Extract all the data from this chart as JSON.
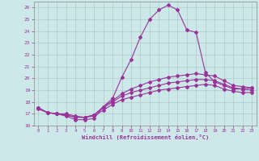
{
  "xlabel": "Windchill (Refroidissement éolien,°C)",
  "background_color": "#cce8e8",
  "grid_color": "#b0c8c8",
  "line_color": "#993399",
  "xlim": [
    -0.5,
    23.5
  ],
  "ylim": [
    16,
    26.5
  ],
  "yticks": [
    16,
    17,
    18,
    19,
    20,
    21,
    22,
    23,
    24,
    25,
    26
  ],
  "xticks": [
    0,
    1,
    2,
    3,
    4,
    5,
    6,
    7,
    8,
    9,
    10,
    11,
    12,
    13,
    14,
    15,
    16,
    17,
    18,
    19,
    20,
    21,
    22,
    23
  ],
  "line1_x": [
    0,
    1,
    2,
    3,
    4,
    5,
    6,
    7,
    8,
    9,
    10,
    11,
    12,
    13,
    14,
    15,
    16,
    17,
    18,
    19,
    20,
    21,
    22,
    23
  ],
  "line1_y": [
    17.4,
    17.1,
    17.0,
    16.8,
    16.5,
    16.5,
    16.6,
    17.6,
    18.3,
    20.1,
    21.6,
    23.5,
    25.0,
    25.8,
    26.2,
    25.8,
    24.1,
    23.9,
    20.5,
    19.7,
    19.4,
    19.1,
    19.1,
    19.2
  ],
  "line2_x": [
    0,
    1,
    2,
    3,
    4,
    5,
    6,
    7,
    8,
    9,
    10,
    11,
    12,
    13,
    14,
    15,
    16,
    17,
    18,
    19,
    20,
    21,
    22,
    23
  ],
  "line2_y": [
    17.5,
    17.1,
    17.0,
    17.0,
    16.8,
    16.7,
    16.9,
    17.6,
    18.1,
    18.7,
    19.1,
    19.4,
    19.7,
    19.9,
    20.1,
    20.2,
    20.3,
    20.4,
    20.3,
    20.2,
    19.8,
    19.4,
    19.3,
    19.2
  ],
  "line3_x": [
    0,
    1,
    2,
    3,
    4,
    5,
    6,
    7,
    8,
    9,
    10,
    11,
    12,
    13,
    14,
    15,
    16,
    17,
    18,
    19,
    20,
    21,
    22,
    23
  ],
  "line3_y": [
    17.5,
    17.1,
    17.0,
    16.9,
    16.7,
    16.7,
    16.9,
    17.5,
    18.0,
    18.5,
    18.8,
    19.0,
    19.2,
    19.4,
    19.6,
    19.7,
    19.8,
    19.9,
    19.9,
    19.8,
    19.5,
    19.2,
    19.1,
    19.0
  ],
  "line4_x": [
    0,
    1,
    2,
    3,
    4,
    5,
    6,
    7,
    8,
    9,
    10,
    11,
    12,
    13,
    14,
    15,
    16,
    17,
    18,
    19,
    20,
    21,
    22,
    23
  ],
  "line4_y": [
    17.5,
    17.1,
    17.0,
    16.9,
    16.7,
    16.7,
    16.8,
    17.3,
    17.8,
    18.2,
    18.4,
    18.6,
    18.8,
    19.0,
    19.1,
    19.2,
    19.3,
    19.4,
    19.5,
    19.4,
    19.1,
    18.9,
    18.8,
    18.8
  ]
}
